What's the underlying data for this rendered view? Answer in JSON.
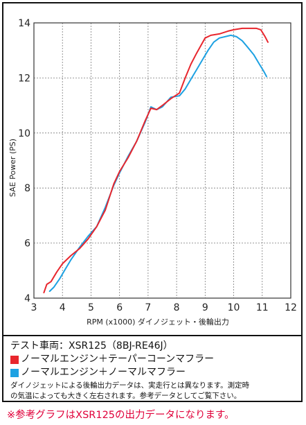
{
  "chart_data": {
    "type": "line",
    "xlabel": "RPM (x1000) ダイノジェット・後輪出力",
    "ylabel": "SAE Power (PS)",
    "xlim": [
      3,
      12
    ],
    "ylim": [
      4,
      14
    ],
    "xticks": [
      3,
      4,
      5,
      6,
      7,
      8,
      9,
      10,
      11,
      12
    ],
    "yticks": [
      4,
      6,
      8,
      10,
      12,
      14
    ],
    "grid": true,
    "series": [
      {
        "name": "ノーマルエンジン＋テーパーコーンマフラー",
        "color": "#e8262d",
        "x": [
          3.35,
          3.45,
          3.6,
          3.8,
          4.0,
          4.3,
          4.6,
          4.9,
          5.2,
          5.5,
          5.8,
          6.0,
          6.3,
          6.6,
          6.9,
          7.1,
          7.3,
          7.5,
          7.8,
          8.1,
          8.3,
          8.5,
          8.7,
          9.0,
          9.2,
          9.5,
          9.8,
          10.0,
          10.3,
          10.6,
          10.8,
          10.95,
          11.1,
          11.2
        ],
        "y": [
          4.2,
          4.5,
          4.6,
          4.95,
          5.25,
          5.55,
          5.8,
          6.15,
          6.6,
          7.2,
          8.15,
          8.6,
          9.1,
          9.7,
          10.45,
          10.9,
          10.85,
          11.0,
          11.25,
          11.45,
          12.0,
          12.5,
          12.9,
          13.45,
          13.55,
          13.6,
          13.7,
          13.75,
          13.8,
          13.8,
          13.8,
          13.75,
          13.5,
          13.3
        ]
      },
      {
        "name": "ノーマルエンジン＋ノーマルマフラー",
        "color": "#1da1e2",
        "x": [
          3.55,
          3.7,
          3.9,
          4.1,
          4.3,
          4.6,
          4.9,
          5.2,
          5.5,
          5.8,
          6.0,
          6.3,
          6.6,
          6.9,
          7.1,
          7.3,
          7.5,
          7.8,
          8.1,
          8.3,
          8.5,
          8.7,
          8.9,
          9.1,
          9.3,
          9.5,
          9.7,
          9.9,
          10.1,
          10.3,
          10.5,
          10.7,
          10.9,
          11.05,
          11.15
        ],
        "y": [
          4.25,
          4.4,
          4.7,
          5.05,
          5.4,
          5.85,
          6.25,
          6.6,
          7.3,
          8.1,
          8.55,
          9.15,
          9.7,
          10.4,
          10.95,
          10.85,
          10.95,
          11.3,
          11.35,
          11.6,
          11.95,
          12.3,
          12.65,
          13.0,
          13.3,
          13.45,
          13.5,
          13.55,
          13.5,
          13.35,
          13.1,
          12.85,
          12.5,
          12.25,
          12.05
        ]
      }
    ]
  },
  "legend": {
    "title": "テスト車両：XSR125（8BJ-RE46J）",
    "note_line1": "ダイノジェットによる後輪出力データは、実走行とは異なります。測定時",
    "note_line2": "の気温によっても大きく左右されます。参考データとしてご覧下さい。"
  },
  "footer": "※参考グラフはXSR125の出力データになります。"
}
